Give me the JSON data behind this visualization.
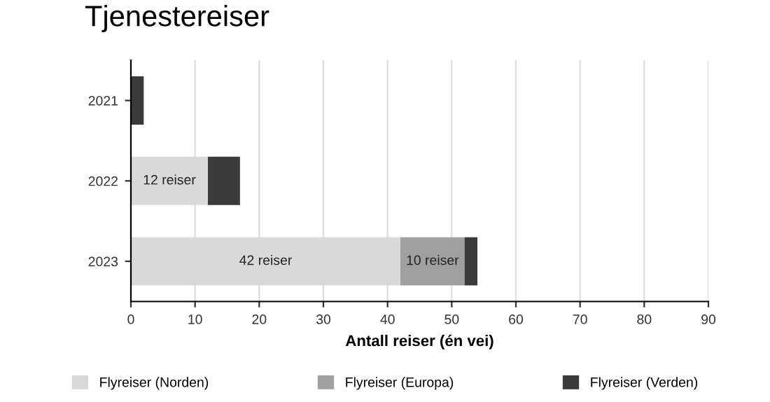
{
  "chart_data": {
    "type": "bar",
    "title": "Tjenestereiser",
    "xlabel": "Antall reiser (én vei)",
    "orientation": "horizontal",
    "stacked": true,
    "categories": [
      "2021",
      "2022",
      "2023"
    ],
    "series": [
      {
        "name": "Flyreiser (Norden)",
        "color": "#d9d9d9",
        "values": [
          0,
          12,
          42
        ],
        "value_labels": [
          null,
          "12 reiser",
          "42 reiser"
        ]
      },
      {
        "name": "Flyreiser (Europa)",
        "color": "#a0a0a0",
        "values": [
          0,
          0,
          10
        ],
        "value_labels": [
          null,
          null,
          "10 reiser"
        ]
      },
      {
        "name": "Flyreiser (Verden)",
        "color": "#3a3a3a",
        "values": [
          2,
          5,
          2
        ]
      }
    ],
    "xlim": [
      0,
      90
    ],
    "xticks": [
      0,
      10,
      20,
      30,
      40,
      50,
      60,
      70,
      80,
      90
    ],
    "grid": "x",
    "legend": "bottom"
  }
}
